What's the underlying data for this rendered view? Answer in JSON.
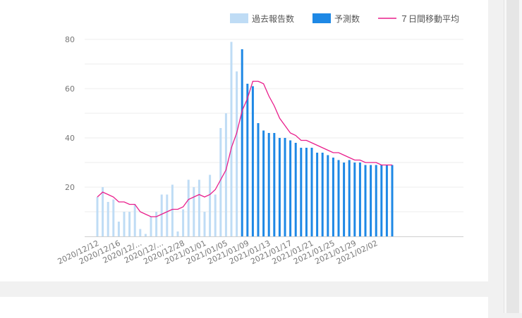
{
  "chart_data": {
    "type": "bar",
    "title": "",
    "xlabel": "",
    "ylabel": "",
    "ylim": [
      0,
      80
    ],
    "yticks": [
      20,
      40,
      60,
      80
    ],
    "grid": true,
    "legend_position": "top-right",
    "x_tick_labels": [
      "2020/12/12",
      "2020/12/16",
      "2020/12/...",
      "2020/12/...",
      "2020/12/28",
      "2021/01/01",
      "2021/01/05",
      "2021/01/09",
      "2021/01/13",
      "2021/01/17",
      "2021/01/21",
      "2021/01/25",
      "2021/01/29",
      "2021/02/02"
    ],
    "legend": {
      "past": "過去報告数",
      "forecast": "予測数",
      "avg": "７日間移動平均"
    },
    "colors": {
      "past": "#bfdcf5",
      "forecast": "#1e88e5",
      "avg": "#e91e8c"
    },
    "past": [
      16,
      20,
      14,
      15,
      6,
      10,
      10,
      13,
      3,
      1,
      8,
      10,
      17,
      17,
      21,
      2,
      11,
      23,
      20,
      23,
      10,
      25,
      17,
      44,
      50,
      79,
      67
    ],
    "forecast": [
      76,
      62,
      61,
      46,
      43,
      42,
      42,
      40,
      40,
      39,
      38,
      36,
      36,
      36,
      34,
      34,
      33,
      32,
      31,
      30,
      31,
      30,
      30,
      29,
      29,
      29,
      29,
      29,
      29
    ],
    "moving_average": [
      16,
      18,
      17,
      16,
      14,
      14,
      13,
      13,
      10,
      9,
      8,
      8,
      9,
      10,
      11,
      11,
      12,
      15,
      16,
      17,
      16,
      17,
      19,
      23,
      27,
      36,
      42,
      51,
      56,
      63,
      63,
      62,
      57,
      53,
      48,
      45,
      42,
      41,
      39,
      39,
      38,
      37,
      36,
      35,
      34,
      34,
      33,
      32,
      31,
      31,
      30,
      30,
      30,
      29,
      29,
      29
    ]
  }
}
